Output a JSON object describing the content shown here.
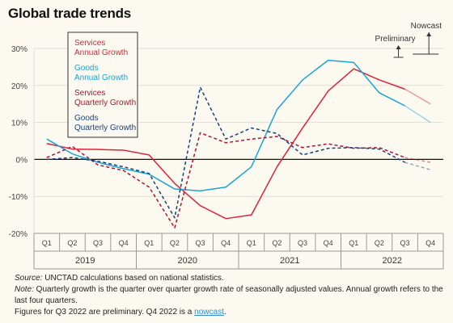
{
  "page": {
    "title": "Global trade trends"
  },
  "chart_data": {
    "type": "line",
    "title": "Global trade trends",
    "quarters": [
      "Q1",
      "Q2",
      "Q3",
      "Q4",
      "Q1",
      "Q2",
      "Q3",
      "Q4",
      "Q1",
      "Q2",
      "Q3",
      "Q4",
      "Q1",
      "Q2",
      "Q3",
      "Q4"
    ],
    "years": [
      "2019",
      "2020",
      "2021",
      "2022"
    ],
    "ylim": [
      -20,
      30
    ],
    "yticks": [
      30,
      20,
      10,
      0,
      -10,
      -20
    ],
    "ytick_labels": [
      "30%",
      "20%",
      "10%",
      "0%",
      "-10%",
      "-20%"
    ],
    "grid": true,
    "legend_position": "top-left",
    "series": [
      {
        "name": "Services Annual Growth",
        "color": "#e0203a",
        "dash": false,
        "values": [
          4.3,
          2.8,
          2.7,
          2.5,
          1.2,
          -6.5,
          -12.5,
          -16,
          -15,
          -2,
          8.5,
          18.5,
          24.5,
          21.5,
          19,
          15
        ]
      },
      {
        "name": "Goods Annual Growth",
        "color": "#1ba3d6",
        "dash": false,
        "values": [
          5.5,
          1.5,
          -0.8,
          -2.5,
          -4,
          -8,
          -8.5,
          -7.5,
          -2,
          13.5,
          21.5,
          26.8,
          26.2,
          18,
          14.5,
          10
        ]
      },
      {
        "name": "Services Quarterly Growth",
        "color": "#b01030",
        "dash": true,
        "values": [
          0.5,
          3.5,
          -1.5,
          -3,
          -7.5,
          -18.5,
          7.2,
          4.5,
          5.5,
          6.2,
          3.2,
          4.2,
          3,
          3.2,
          0.5,
          -0.8
        ]
      },
      {
        "name": "Goods Quarterly Growth",
        "color": "#1a3f7a",
        "dash": true,
        "values": [
          0,
          0.5,
          -0.5,
          -2,
          -3.8,
          -15.8,
          19.5,
          5.5,
          8.5,
          7,
          1.2,
          3,
          3.2,
          2.8,
          -0.8,
          -2.8
        ]
      }
    ],
    "annotations": {
      "preliminary": "Preliminary",
      "nowcast": "Nowcast"
    }
  },
  "notes": {
    "source_label": "Source:",
    "source_text": " UNCTAD calculations based on national statistics.",
    "note_label": "Note:",
    "note_text": " Quarterly growth is the quarter over quarter growth rate of seasonally adjusted values. Annual growth refers to the last four quarters.",
    "figures_text": "Figures for Q3 2022 are preliminary. Q4 2022 is a ",
    "nowcast_link": "nowcast",
    "period": "."
  }
}
